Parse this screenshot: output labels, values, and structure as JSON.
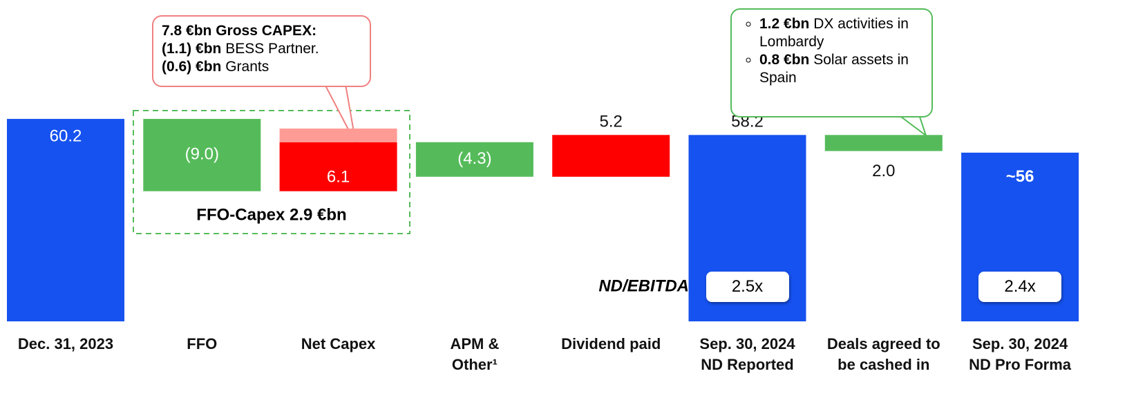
{
  "chart_data": {
    "type": "waterfall",
    "categories": [
      "Dec. 31, 2023",
      "FFO",
      "Net Capex",
      "APM &\nOther¹",
      "Dividend paid",
      "Sep. 30, 2024\nND Reported",
      "Deals agreed to\nbe cashed in",
      "Sep. 30, 2024\nND Pro Forma"
    ],
    "kinds": [
      "total",
      "step",
      "step",
      "step",
      "step",
      "total",
      "step",
      "total"
    ],
    "values": [
      60.2,
      -9.0,
      6.1,
      -4.3,
      5.2,
      58.2,
      -2.0,
      56
    ],
    "value_labels": [
      "60.2",
      "(9.0)",
      "6.1",
      "(4.3)",
      "5.2",
      "58.2",
      "2.0",
      "~56"
    ],
    "colors": [
      "#1652f0",
      "#55bb5a",
      "#ff0000",
      "#55bb5a",
      "#ff0000",
      "#1652f0",
      "#55bb5a",
      "#1652f0"
    ],
    "net_capex_offsets": {
      "values": [
        1.1,
        0.6
      ],
      "color": "#ff9b95"
    },
    "ylim": [
      35,
      75
    ],
    "group_label": "FFO-Capex 2.9 €bn",
    "ratio_label": "ND/EBITDA²",
    "ratios": [
      {
        "category": 5,
        "text": "2.5x"
      },
      {
        "category": 7,
        "text": "2.4x"
      }
    ],
    "capex_callout": [
      {
        "bold": "7.8 €bn Gross CAPEX:",
        "text": ""
      },
      {
        "bold": "(1.1) €bn",
        "text": " BESS Partner."
      },
      {
        "bold": "(0.6) €bn",
        "text": " Grants"
      }
    ],
    "deals_callout": [
      {
        "bold": "1.2 €bn",
        "text": " DX activities in Lombardy"
      },
      {
        "bold": "0.8 €bn",
        "text": " Solar assets in Spain"
      }
    ]
  }
}
